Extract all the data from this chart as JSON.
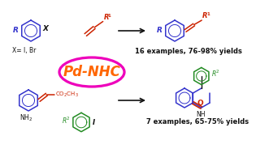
{
  "bg_color": "#ffffff",
  "blue": "#3333CC",
  "red": "#CC2200",
  "green": "#228B22",
  "black": "#111111",
  "orange": "#FF6600",
  "magenta": "#EE00BB",
  "top_yield": "16 examples, 76-98% yields",
  "bottom_yield": "7 examples, 65-75% yields",
  "x_sub": "X= I, Br",
  "pd_label": "Pd-NHC",
  "figw": 3.15,
  "figh": 1.89,
  "dpi": 100
}
